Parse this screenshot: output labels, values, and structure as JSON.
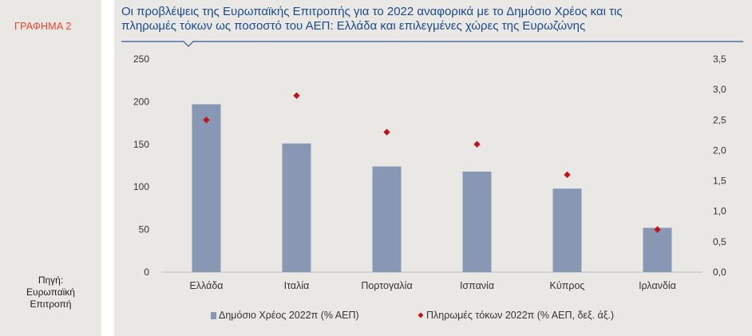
{
  "sidebar": {
    "tag": "ΓΡΑΦΗΜΑ 2",
    "source_lines": [
      "Πηγή:",
      "Ευρωπαϊκή",
      "Επιτροπή"
    ]
  },
  "colors": {
    "bar": "#8897b3",
    "marker": "#c0141c",
    "title": "#1c4a8c",
    "tag": "#e6432f",
    "rule": "#2f5597",
    "background": "#e9e8e4"
  },
  "chart_data": {
    "type": "bar",
    "title_lines": [
      "Οι προβλέψεις της Ευρωπαϊκής Επιτροπής για το 2022 αναφορικά με το Δημόσιο Χρέος και τις",
      "πληρωμές τόκων ως ποσοστό του ΑΕΠ: Ελλάδα και επιλεγμένες χώρες της Ευρωζώνης"
    ],
    "categories": [
      "Ελλάδα",
      "Ιταλία",
      "Πορτογαλία",
      "Ισπανία",
      "Κύπρος",
      "Ιρλανδία"
    ],
    "series": [
      {
        "name": "Δημόσιο Χρέος 2022π (% ΑΕΠ)",
        "type": "bar",
        "axis": "left",
        "values": [
          197,
          151,
          124,
          118,
          98,
          52
        ]
      },
      {
        "name": "Πληρωμές τόκων 2022π (% ΑΕΠ, δεξ. άξ.)",
        "type": "scatter",
        "axis": "right",
        "values": [
          2.5,
          2.9,
          2.3,
          2.1,
          1.6,
          0.7
        ]
      }
    ],
    "y_left": {
      "ylim": [
        0,
        250
      ],
      "ticks": [
        "0",
        "50",
        "100",
        "150",
        "200",
        "250"
      ]
    },
    "y_right": {
      "ylim": [
        0,
        3.5
      ],
      "ticks": [
        "0,0",
        "0,5",
        "1,0",
        "1,5",
        "2,0",
        "2,5",
        "3,0",
        "3,5"
      ]
    },
    "grid": false,
    "legend_position": "bottom"
  }
}
